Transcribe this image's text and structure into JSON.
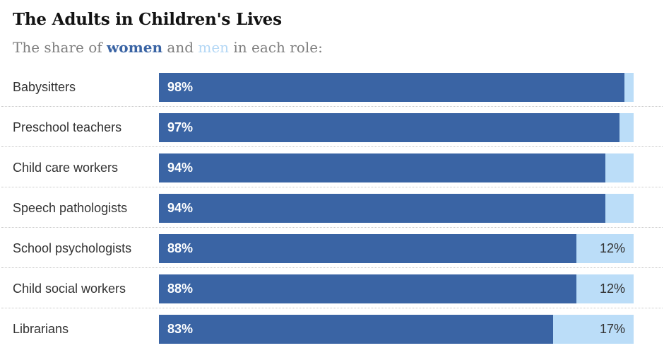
{
  "title": "The Adults in Children's Lives",
  "subtitle": {
    "prefix": "The share of ",
    "women_word": "women",
    "middle": " and ",
    "men_word": "men",
    "suffix": " in each role:"
  },
  "colors": {
    "women": "#3A64A4",
    "men": "#BBDDF8",
    "men_subtitle": "#B3D7F5",
    "label": "#333333",
    "subtitle_gray": "#7E7E7E",
    "divider": "#C9C9C9"
  },
  "chart_data": {
    "type": "bar",
    "stacked": true,
    "orientation": "horizontal",
    "title": "The Adults in Children's Lives",
    "subtitle": "The share of women and men in each role:",
    "categories": [
      "Babysitters",
      "Preschool teachers",
      "Child care workers",
      "Speech pathologists",
      "School psychologists",
      "Child social workers",
      "Librarians"
    ],
    "series": [
      {
        "name": "women",
        "values": [
          98,
          97,
          94,
          94,
          88,
          88,
          83
        ]
      },
      {
        "name": "men",
        "values": [
          2,
          3,
          6,
          6,
          12,
          12,
          17
        ]
      }
    ],
    "value_labels": {
      "women": [
        "98%",
        "97%",
        "94%",
        "94%",
        "88%",
        "88%",
        "83%"
      ],
      "men": [
        "",
        "",
        "",
        "",
        "12%",
        "12%",
        "17%"
      ]
    },
    "xlim": [
      0,
      100
    ],
    "grid": false,
    "legend": "inline-in-subtitle",
    "row_separator": "dotted"
  }
}
